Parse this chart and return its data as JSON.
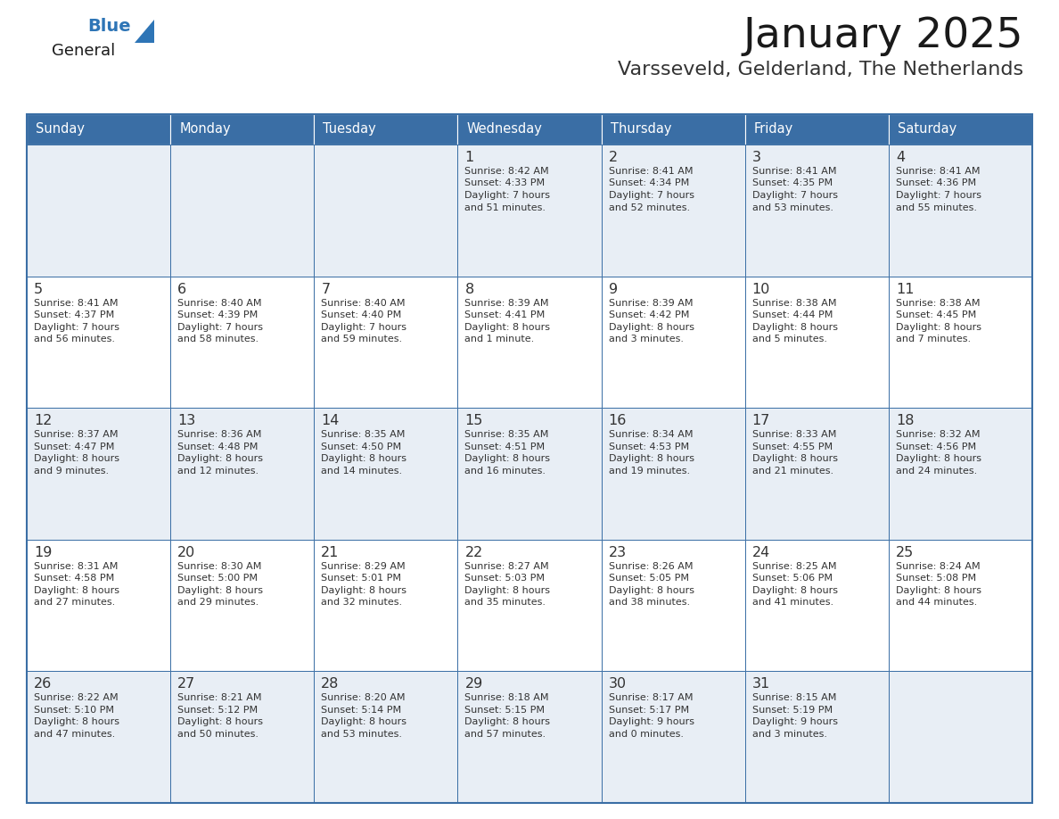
{
  "title": "January 2025",
  "subtitle": "Varsseveld, Gelderland, The Netherlands",
  "days_of_week": [
    "Sunday",
    "Monday",
    "Tuesday",
    "Wednesday",
    "Thursday",
    "Friday",
    "Saturday"
  ],
  "header_bg": "#3a6ea5",
  "header_text_color": "#ffffff",
  "cell_bg_light": "#e8eef5",
  "cell_bg_white": "#ffffff",
  "row_line_color": "#3a6ea5",
  "col_line_color": "#cccccc",
  "text_color": "#333333",
  "day_number_color": "#333333",
  "title_color": "#1a1a1a",
  "subtitle_color": "#333333",
  "general_black": "#1a1a1a",
  "general_blue": "#2e75b6",
  "logo_triangle_color": "#2e75b6",
  "calendar_data": [
    [
      null,
      null,
      null,
      {
        "day": 1,
        "sunrise": "8:42 AM",
        "sunset": "4:33 PM",
        "daylight": "7 hours\nand 51 minutes."
      },
      {
        "day": 2,
        "sunrise": "8:41 AM",
        "sunset": "4:34 PM",
        "daylight": "7 hours\nand 52 minutes."
      },
      {
        "day": 3,
        "sunrise": "8:41 AM",
        "sunset": "4:35 PM",
        "daylight": "7 hours\nand 53 minutes."
      },
      {
        "day": 4,
        "sunrise": "8:41 AM",
        "sunset": "4:36 PM",
        "daylight": "7 hours\nand 55 minutes."
      }
    ],
    [
      {
        "day": 5,
        "sunrise": "8:41 AM",
        "sunset": "4:37 PM",
        "daylight": "7 hours\nand 56 minutes."
      },
      {
        "day": 6,
        "sunrise": "8:40 AM",
        "sunset": "4:39 PM",
        "daylight": "7 hours\nand 58 minutes."
      },
      {
        "day": 7,
        "sunrise": "8:40 AM",
        "sunset": "4:40 PM",
        "daylight": "7 hours\nand 59 minutes."
      },
      {
        "day": 8,
        "sunrise": "8:39 AM",
        "sunset": "4:41 PM",
        "daylight": "8 hours\nand 1 minute."
      },
      {
        "day": 9,
        "sunrise": "8:39 AM",
        "sunset": "4:42 PM",
        "daylight": "8 hours\nand 3 minutes."
      },
      {
        "day": 10,
        "sunrise": "8:38 AM",
        "sunset": "4:44 PM",
        "daylight": "8 hours\nand 5 minutes."
      },
      {
        "day": 11,
        "sunrise": "8:38 AM",
        "sunset": "4:45 PM",
        "daylight": "8 hours\nand 7 minutes."
      }
    ],
    [
      {
        "day": 12,
        "sunrise": "8:37 AM",
        "sunset": "4:47 PM",
        "daylight": "8 hours\nand 9 minutes."
      },
      {
        "day": 13,
        "sunrise": "8:36 AM",
        "sunset": "4:48 PM",
        "daylight": "8 hours\nand 12 minutes."
      },
      {
        "day": 14,
        "sunrise": "8:35 AM",
        "sunset": "4:50 PM",
        "daylight": "8 hours\nand 14 minutes."
      },
      {
        "day": 15,
        "sunrise": "8:35 AM",
        "sunset": "4:51 PM",
        "daylight": "8 hours\nand 16 minutes."
      },
      {
        "day": 16,
        "sunrise": "8:34 AM",
        "sunset": "4:53 PM",
        "daylight": "8 hours\nand 19 minutes."
      },
      {
        "day": 17,
        "sunrise": "8:33 AM",
        "sunset": "4:55 PM",
        "daylight": "8 hours\nand 21 minutes."
      },
      {
        "day": 18,
        "sunrise": "8:32 AM",
        "sunset": "4:56 PM",
        "daylight": "8 hours\nand 24 minutes."
      }
    ],
    [
      {
        "day": 19,
        "sunrise": "8:31 AM",
        "sunset": "4:58 PM",
        "daylight": "8 hours\nand 27 minutes."
      },
      {
        "day": 20,
        "sunrise": "8:30 AM",
        "sunset": "5:00 PM",
        "daylight": "8 hours\nand 29 minutes."
      },
      {
        "day": 21,
        "sunrise": "8:29 AM",
        "sunset": "5:01 PM",
        "daylight": "8 hours\nand 32 minutes."
      },
      {
        "day": 22,
        "sunrise": "8:27 AM",
        "sunset": "5:03 PM",
        "daylight": "8 hours\nand 35 minutes."
      },
      {
        "day": 23,
        "sunrise": "8:26 AM",
        "sunset": "5:05 PM",
        "daylight": "8 hours\nand 38 minutes."
      },
      {
        "day": 24,
        "sunrise": "8:25 AM",
        "sunset": "5:06 PM",
        "daylight": "8 hours\nand 41 minutes."
      },
      {
        "day": 25,
        "sunrise": "8:24 AM",
        "sunset": "5:08 PM",
        "daylight": "8 hours\nand 44 minutes."
      }
    ],
    [
      {
        "day": 26,
        "sunrise": "8:22 AM",
        "sunset": "5:10 PM",
        "daylight": "8 hours\nand 47 minutes."
      },
      {
        "day": 27,
        "sunrise": "8:21 AM",
        "sunset": "5:12 PM",
        "daylight": "8 hours\nand 50 minutes."
      },
      {
        "day": 28,
        "sunrise": "8:20 AM",
        "sunset": "5:14 PM",
        "daylight": "8 hours\nand 53 minutes."
      },
      {
        "day": 29,
        "sunrise": "8:18 AM",
        "sunset": "5:15 PM",
        "daylight": "8 hours\nand 57 minutes."
      },
      {
        "day": 30,
        "sunrise": "8:17 AM",
        "sunset": "5:17 PM",
        "daylight": "9 hours\nand 0 minutes."
      },
      {
        "day": 31,
        "sunrise": "8:15 AM",
        "sunset": "5:19 PM",
        "daylight": "9 hours\nand 3 minutes."
      },
      null
    ]
  ]
}
